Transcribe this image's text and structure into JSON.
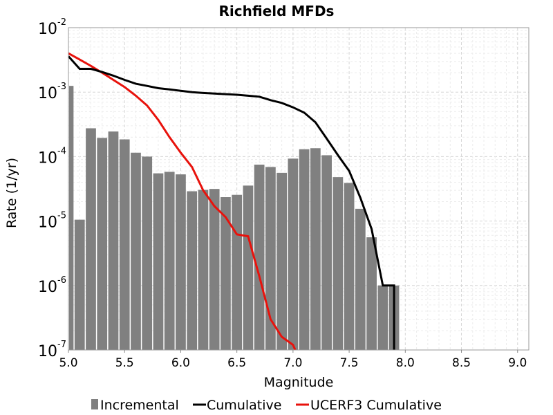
{
  "chart_data": {
    "type": "bar",
    "title": "Richfield MFDs",
    "xlabel": "Magnitude",
    "ylabel": "Rate (1/yr)",
    "xlim": [
      5.0,
      9.1
    ],
    "ylim": [
      1e-07,
      0.01
    ],
    "yscale": "log",
    "grid": true,
    "legend_position": "bottom",
    "x_ticks": [
      "5.0",
      "5.5",
      "6.0",
      "6.5",
      "7.0",
      "7.5",
      "8.0",
      "8.5",
      "9.0"
    ],
    "y_ticks": [
      {
        "base": "10",
        "exp": "-7"
      },
      {
        "base": "10",
        "exp": "-6"
      },
      {
        "base": "10",
        "exp": "-5"
      },
      {
        "base": "10",
        "exp": "-4"
      },
      {
        "base": "10",
        "exp": "-3"
      },
      {
        "base": "10",
        "exp": "-2"
      }
    ],
    "bar_width": 0.1,
    "incremental": {
      "name": "Incremental",
      "color": "#808080",
      "x": [
        5.0,
        5.1,
        5.2,
        5.3,
        5.4,
        5.5,
        5.6,
        5.7,
        5.8,
        5.9,
        6.0,
        6.1,
        6.2,
        6.3,
        6.4,
        6.5,
        6.6,
        6.7,
        6.8,
        6.9,
        7.0,
        7.1,
        7.2,
        7.3,
        7.4,
        7.5,
        7.6,
        7.7,
        7.8,
        7.9
      ],
      "values": [
        0.00125,
        1.05e-05,
        0.000275,
        0.000195,
        0.000245,
        0.000185,
        0.000115,
        0.0001,
        5.5e-05,
        5.8e-05,
        5.3e-05,
        2.9e-05,
        3.05e-05,
        3.15e-05,
        2.35e-05,
        2.55e-05,
        3.55e-05,
        7.5e-05,
        6.9e-05,
        5.6e-05,
        9.3e-05,
        0.00013,
        0.000135,
        0.000105,
        4.8e-05,
        3.9e-05,
        1.55e-05,
        5.6e-06,
        1e-06,
        1e-06
      ]
    },
    "cumulative": {
      "name": "Cumulative",
      "color": "#000000",
      "x": [
        5.0,
        5.1,
        5.2,
        5.3,
        5.4,
        5.5,
        5.6,
        5.7,
        5.8,
        5.9,
        6.0,
        6.1,
        6.2,
        6.3,
        6.4,
        6.5,
        6.6,
        6.7,
        6.8,
        6.9,
        7.0,
        7.1,
        7.2,
        7.3,
        7.4,
        7.5,
        7.6,
        7.7,
        7.8,
        7.9,
        7.9
      ],
      "values": [
        0.0036,
        0.0023,
        0.0023,
        0.00205,
        0.0018,
        0.00155,
        0.00135,
        0.00125,
        0.00115,
        0.0011,
        0.00105,
        0.001,
        0.00097,
        0.00095,
        0.00093,
        0.00091,
        0.00088,
        0.00085,
        0.00075,
        0.00068,
        0.00058,
        0.00048,
        0.00034,
        0.00019,
        0.000105,
        6e-05,
        2.3e-05,
        7.5e-06,
        1e-06,
        1e-06,
        1e-07
      ]
    },
    "ucerf3_cumulative": {
      "name": "UCERF3 Cumulative",
      "color": "#e8120c",
      "x": [
        5.0,
        5.1,
        5.2,
        5.3,
        5.4,
        5.5,
        5.6,
        5.7,
        5.8,
        5.9,
        6.0,
        6.1,
        6.2,
        6.3,
        6.4,
        6.5,
        6.6,
        6.7,
        6.8,
        6.9,
        7.0,
        7.02
      ],
      "values": [
        0.004,
        0.0032,
        0.00255,
        0.002,
        0.00155,
        0.0012,
        0.00088,
        0.00062,
        0.00037,
        0.0002,
        0.000115,
        6.9e-05,
        3e-05,
        1.7e-05,
        1.15e-05,
        6.2e-06,
        5.8e-06,
        1.4e-06,
        3e-07,
        1.6e-07,
        1.2e-07,
        1e-07
      ]
    }
  }
}
